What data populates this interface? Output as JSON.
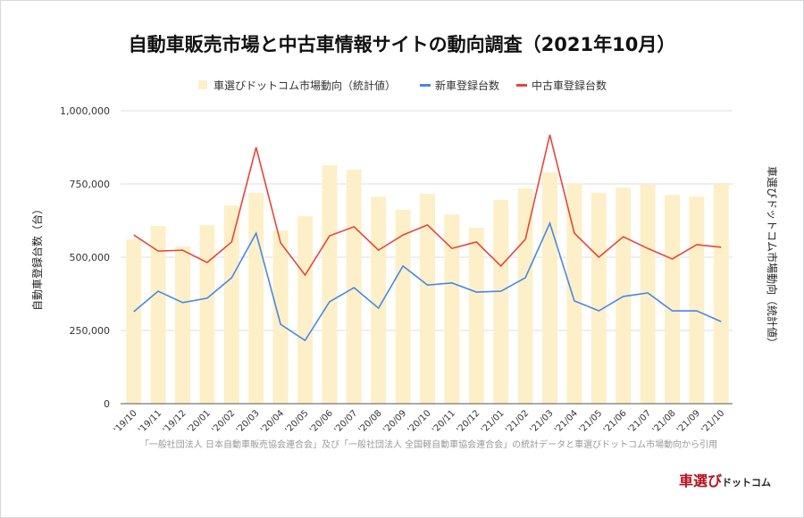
{
  "chart_data": {
    "type": "bar+line",
    "title": "自動車販売市場と中古車情報サイトの動向調査（2021年10月）",
    "ylabel": "自動車登録台数（台）",
    "y2label": "車選びドットコム市場動向（統計値）",
    "ylim": [
      0,
      1000000
    ],
    "yticks": [
      "0",
      "250,000",
      "500,000",
      "750,000",
      "1,000,000"
    ],
    "ytick_values": [
      0,
      250000,
      500000,
      750000,
      1000000
    ],
    "grid": true,
    "legend_position": "top",
    "categories": [
      "'19/10",
      "'19/11",
      "'19/12",
      "'20/01",
      "'20/02",
      "'20/03",
      "'20/04",
      "'20/05",
      "'20/06",
      "'20/07",
      "'20/08",
      "'20/09",
      "'20/10",
      "'20/11",
      "'20/12",
      "'21/01",
      "'21/02",
      "'21/03",
      "'21/04",
      "'21/05",
      "'21/06",
      "'21/07",
      "'21/08",
      "'21/09",
      "'21/10"
    ],
    "series": [
      {
        "name": "車選びドットコム市場動向（統計値）",
        "type": "bar",
        "color": "#fdf0c8",
        "values": [
          561000,
          607000,
          537000,
          610000,
          677000,
          720000,
          591000,
          640000,
          814000,
          799000,
          707000,
          662000,
          716000,
          646000,
          601000,
          695000,
          735000,
          790000,
          753000,
          720000,
          738000,
          747000,
          713000,
          707000,
          750000
        ]
      },
      {
        "name": "新車登録台数",
        "type": "line",
        "color": "#4a86e8",
        "values": [
          314000,
          384000,
          345000,
          360000,
          430000,
          582000,
          271000,
          216000,
          348000,
          396000,
          326000,
          470000,
          405000,
          412000,
          381000,
          384000,
          430000,
          616000,
          351000,
          317000,
          366000,
          378000,
          317000,
          317000,
          280000
        ]
      },
      {
        "name": "中古車登録台数",
        "type": "line",
        "color": "#e8453c",
        "values": [
          576000,
          521000,
          524000,
          482000,
          552000,
          875000,
          549000,
          439000,
          573000,
          604000,
          524000,
          576000,
          610000,
          530000,
          552000,
          470000,
          561000,
          918000,
          582000,
          500000,
          570000,
          530000,
          494000,
          543000,
          534000
        ]
      }
    ]
  },
  "footer": {
    "source_note": "「一般社団法人 日本自動車販売協会連合会」及び「一般社団法人 全国軽自動車協会連合会」の統計データと車選びドットコム市場動向から引用",
    "logo_main": "車選び",
    "logo_sub": "ドットコム"
  }
}
